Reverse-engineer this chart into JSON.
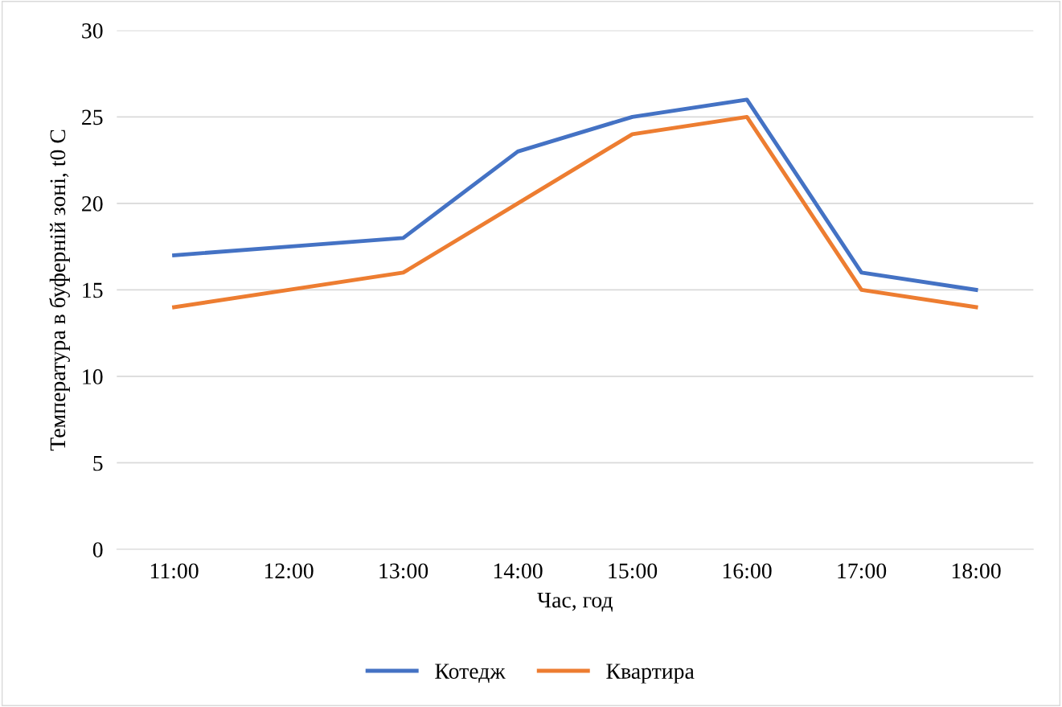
{
  "chart_data": {
    "type": "line",
    "xlabel": "Час, год",
    "ylabel": "Температура в буферній зоні, t0 C",
    "categories": [
      "11:00",
      "12:00",
      "13:00",
      "14:00",
      "15:00",
      "16:00",
      "17:00",
      "18:00"
    ],
    "series": [
      {
        "name": "Котедж",
        "color": "#4472c4",
        "values": [
          17,
          17.5,
          18,
          23,
          25,
          26,
          16,
          15
        ]
      },
      {
        "name": "Квартира",
        "color": "#ed7d31",
        "values": [
          14,
          15,
          16,
          20,
          24,
          25,
          15,
          14
        ]
      }
    ],
    "ylim": [
      0,
      30
    ],
    "yticks": [
      0,
      5,
      10,
      15,
      20,
      25,
      30
    ],
    "grid": "y",
    "legend": "bottom",
    "marker": "none",
    "line_style": "solid"
  }
}
